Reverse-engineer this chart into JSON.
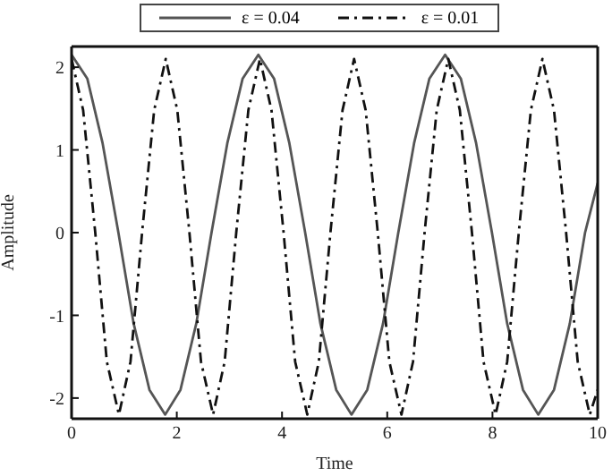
{
  "chart_data": {
    "type": "line",
    "xlabel": "Time",
    "ylabel": "Amplitude",
    "xlim": [
      0,
      10
    ],
    "ylim": [
      -2.25,
      2.25
    ],
    "xticks": [
      0,
      2,
      4,
      6,
      8,
      10
    ],
    "yticks": [
      -2,
      -1,
      0,
      1,
      2
    ],
    "legend": "top",
    "marker": "none",
    "series": [
      {
        "name": "ε = 0.04",
        "color": "#555555",
        "line_style": "solid",
        "x": [
          0,
          0.3,
          0.59,
          0.89,
          1.18,
          1.48,
          1.78,
          2.07,
          2.37,
          2.66,
          2.96,
          3.25,
          3.55,
          3.85,
          4.14,
          4.44,
          4.73,
          5.03,
          5.32,
          5.62,
          5.92,
          6.21,
          6.51,
          6.8,
          7.1,
          7.4,
          7.69,
          7.99,
          8.28,
          8.58,
          8.87,
          9.17,
          9.47,
          9.76,
          10
        ],
        "values": [
          2.15,
          1.86,
          1.08,
          0,
          -1.1,
          -1.9,
          -2.2,
          -1.9,
          -1.1,
          0,
          1.08,
          1.86,
          2.15,
          1.86,
          1.08,
          0,
          -1.1,
          -1.9,
          -2.2,
          -1.9,
          -1.1,
          0,
          1.08,
          1.86,
          2.15,
          1.86,
          1.08,
          0,
          -1.1,
          -1.9,
          -2.2,
          -1.9,
          -1.1,
          0,
          0.6
        ]
      },
      {
        "name": "ε = 0.01",
        "color": "#111111",
        "line_style": "dashdot",
        "x": [
          0,
          0.22,
          0.45,
          0.67,
          0.9,
          1.12,
          1.34,
          1.57,
          1.79,
          2.01,
          2.24,
          2.46,
          2.69,
          2.91,
          3.13,
          3.36,
          3.58,
          3.8,
          4.03,
          4.25,
          4.48,
          4.7,
          4.92,
          5.15,
          5.37,
          5.59,
          5.82,
          6.04,
          6.27,
          6.49,
          6.71,
          6.94,
          7.16,
          7.38,
          7.61,
          7.83,
          8.06,
          8.28,
          8.5,
          8.73,
          8.95,
          9.17,
          9.4,
          9.62,
          9.85,
          10
        ],
        "values": [
          2.1,
          1.48,
          0,
          -1.56,
          -2.2,
          -1.56,
          0,
          1.48,
          2.1,
          1.48,
          0,
          -1.56,
          -2.2,
          -1.56,
          0,
          1.48,
          2.1,
          1.48,
          0,
          -1.56,
          -2.2,
          -1.56,
          0,
          1.48,
          2.1,
          1.48,
          0,
          -1.56,
          -2.2,
          -1.56,
          0,
          1.48,
          2.1,
          1.48,
          0,
          -1.56,
          -2.2,
          -1.56,
          0,
          1.48,
          2.1,
          1.48,
          0,
          -1.56,
          -2.2,
          -1.9
        ]
      }
    ]
  }
}
